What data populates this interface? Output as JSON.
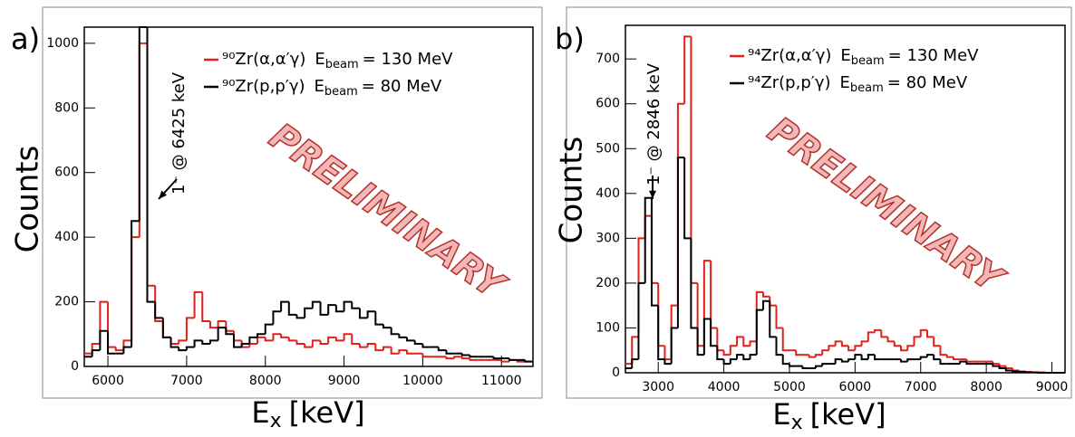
{
  "chart_data": [
    {
      "type": "histogram",
      "panel_label": "a)",
      "y_label": "Counts",
      "x_label": {
        "symbol": "E",
        "subscript": "x",
        "unit": "[keV]"
      },
      "annotation": "1⁻ @ 6425 keV",
      "watermark": "PRELIMINARY",
      "xlim": [
        5700,
        11400
      ],
      "ylim": [
        0,
        1050
      ],
      "xticks": [
        6000,
        7000,
        8000,
        9000,
        10000,
        11000
      ],
      "yticks": [
        0,
        200,
        400,
        600,
        800,
        1000
      ],
      "bins": [
        5700,
        5800,
        5900,
        6000,
        6100,
        6200,
        6300,
        6400,
        6500,
        6600,
        6700,
        6800,
        6900,
        7000,
        7100,
        7200,
        7300,
        7400,
        7500,
        7600,
        7700,
        7800,
        7900,
        8000,
        8100,
        8200,
        8300,
        8400,
        8500,
        8600,
        8700,
        8800,
        8900,
        9000,
        9100,
        9200,
        9300,
        9400,
        9500,
        9600,
        9700,
        9800,
        9900,
        10000,
        10100,
        10200,
        10300,
        10400,
        10500,
        10600,
        10700,
        10800,
        10900,
        11000,
        11100,
        11200,
        11300,
        11400
      ],
      "series": [
        {
          "name": "⁹⁰Zr(α,α′γ)",
          "condition": {
            "symbol": "E",
            "subscript": "beam",
            "value": "= 130 MeV"
          },
          "color": "#e0211b",
          "values": [
            40,
            70,
            200,
            60,
            50,
            80,
            400,
            1000,
            250,
            140,
            90,
            70,
            80,
            150,
            230,
            140,
            120,
            140,
            110,
            80,
            60,
            70,
            90,
            80,
            100,
            90,
            80,
            70,
            60,
            80,
            70,
            90,
            80,
            100,
            70,
            60,
            70,
            50,
            60,
            40,
            50,
            40,
            40,
            30,
            30,
            30,
            25,
            30,
            25,
            20,
            20,
            20,
            20,
            15,
            20,
            15,
            15
          ]
        },
        {
          "name": "⁹⁰Zr(p,p′γ)",
          "condition": {
            "symbol": "E",
            "subscript": "beam",
            "value": "= 80 MeV"
          },
          "color": "#000000",
          "values": [
            30,
            50,
            110,
            40,
            40,
            60,
            450,
            1050,
            200,
            150,
            90,
            60,
            50,
            60,
            80,
            70,
            80,
            120,
            100,
            60,
            70,
            90,
            100,
            130,
            170,
            200,
            160,
            150,
            180,
            200,
            160,
            190,
            170,
            200,
            180,
            150,
            170,
            130,
            120,
            100,
            90,
            80,
            70,
            60,
            60,
            50,
            40,
            40,
            35,
            30,
            30,
            30,
            25,
            25,
            20,
            20,
            15
          ]
        }
      ]
    },
    {
      "type": "histogram",
      "panel_label": "b)",
      "y_label": "Counts",
      "x_label": {
        "symbol": "E",
        "subscript": "x",
        "unit": "[keV]"
      },
      "annotation": "1⁻ @ 2846 keV",
      "watermark": "PRELIMINARY",
      "xlim": [
        2500,
        9200
      ],
      "ylim": [
        0,
        775
      ],
      "xticks": [
        3000,
        4000,
        5000,
        6000,
        7000,
        8000,
        9000
      ],
      "yticks": [
        0,
        100,
        200,
        300,
        400,
        500,
        600,
        700
      ],
      "bins": [
        2500,
        2600,
        2700,
        2800,
        2900,
        3000,
        3100,
        3200,
        3300,
        3400,
        3500,
        3600,
        3700,
        3800,
        3900,
        4000,
        4100,
        4200,
        4300,
        4400,
        4500,
        4600,
        4700,
        4800,
        4900,
        5000,
        5100,
        5200,
        5300,
        5400,
        5500,
        5600,
        5700,
        5800,
        5900,
        6000,
        6100,
        6200,
        6300,
        6400,
        6500,
        6600,
        6700,
        6800,
        6900,
        7000,
        7100,
        7200,
        7300,
        7400,
        7500,
        7600,
        7700,
        7800,
        7900,
        8000,
        8100,
        8200,
        8300,
        8400,
        8500,
        8600,
        8700,
        8800,
        8900,
        9000,
        9100,
        9200
      ],
      "series": [
        {
          "name": "⁹⁴Zr(α,α′γ)",
          "condition": {
            "symbol": "E",
            "subscript": "beam",
            "value": "= 130 MeV"
          },
          "color": "#e0211b",
          "values": [
            20,
            80,
            300,
            350,
            200,
            60,
            30,
            150,
            600,
            750,
            200,
            60,
            250,
            100,
            50,
            40,
            60,
            80,
            60,
            70,
            180,
            170,
            150,
            100,
            50,
            50,
            40,
            40,
            35,
            40,
            50,
            60,
            70,
            60,
            50,
            60,
            70,
            90,
            95,
            80,
            70,
            60,
            50,
            60,
            80,
            95,
            80,
            60,
            40,
            35,
            30,
            30,
            25,
            25,
            25,
            25,
            20,
            15,
            10,
            5,
            3,
            2,
            1,
            1,
            0,
            0,
            0
          ]
        },
        {
          "name": "⁹⁴Zr(p,p′γ)",
          "condition": {
            "symbol": "E",
            "subscript": "beam",
            "value": "= 80 MeV"
          },
          "color": "#000000",
          "values": [
            10,
            30,
            200,
            390,
            150,
            30,
            20,
            100,
            480,
            300,
            100,
            40,
            120,
            60,
            30,
            20,
            30,
            40,
            30,
            40,
            140,
            160,
            80,
            40,
            20,
            15,
            15,
            10,
            10,
            15,
            20,
            20,
            30,
            25,
            30,
            40,
            30,
            40,
            30,
            30,
            30,
            30,
            25,
            30,
            30,
            35,
            40,
            30,
            20,
            20,
            20,
            25,
            20,
            20,
            20,
            20,
            15,
            10,
            5,
            3,
            2,
            1,
            1,
            0,
            0,
            0,
            0
          ]
        }
      ]
    }
  ]
}
